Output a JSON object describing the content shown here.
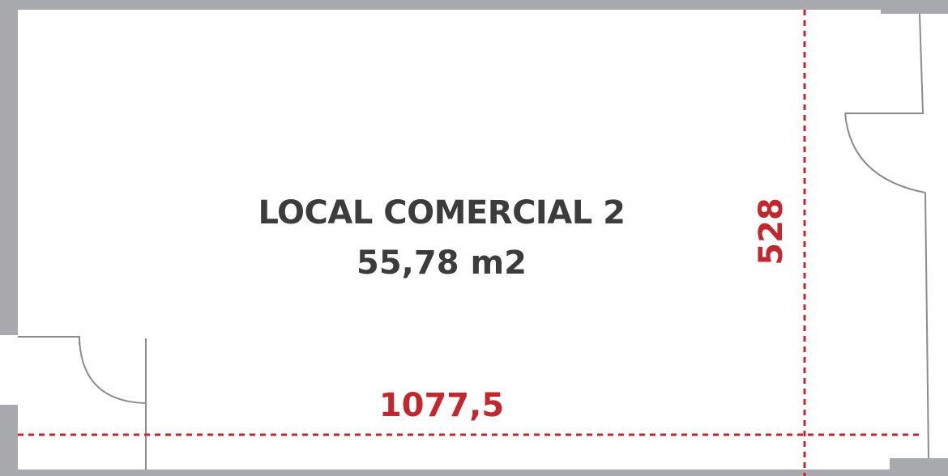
{
  "room": {
    "name": "LOCAL COMERCIAL 2",
    "area": "55,78 m2"
  },
  "dimensions": {
    "width": "1077,5",
    "height": "528"
  },
  "colors": {
    "wall": "#a7a9ac",
    "dimension": "#c1272d",
    "label": "#3c3c3c"
  }
}
